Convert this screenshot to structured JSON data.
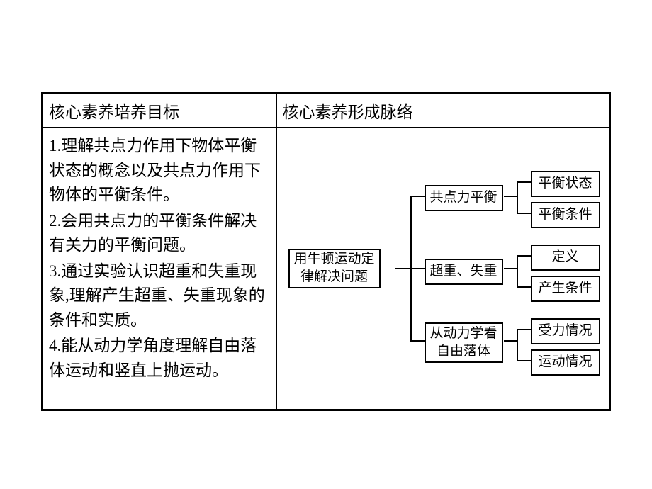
{
  "table": {
    "header_left": "核心素养培养目标",
    "header_right": "核心素养形成脉络",
    "objectives": [
      {
        "num": "1",
        "text": ".理解共点力作用下物体平衡状态的概念以及共点力作用下物体的平衡条件。"
      },
      {
        "num": "2",
        "text": ".会用共点力的平衡条件解决有关力的平衡问题。"
      },
      {
        "num": "3",
        "text": ".通过实验认识超重和失重现象,理解产生超重、失重现象的条件和实质。"
      },
      {
        "num": "4",
        "text": ".能从动力学角度理解自由落体运动和竖直上抛运动。"
      }
    ]
  },
  "tree": {
    "root": "用牛顿运动定\n律解决问题",
    "branches": [
      {
        "label": "共点力平衡",
        "leaves": [
          "平衡状态",
          "平衡条件"
        ]
      },
      {
        "label": "超重、失重",
        "leaves": [
          "定义",
          "产生条件"
        ]
      },
      {
        "label": "从动力学看\n自由落体",
        "leaves": [
          "受力情况",
          "运动情况"
        ]
      }
    ]
  },
  "style": {
    "border_color": "#000000",
    "background": "#ffffff",
    "font_size_main": 23,
    "font_size_node": 19
  }
}
